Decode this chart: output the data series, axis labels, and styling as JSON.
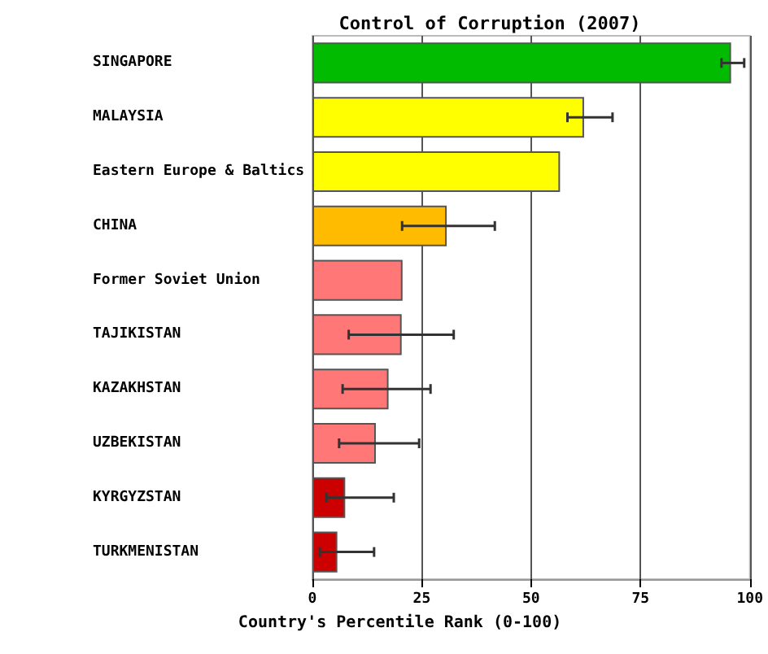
{
  "chart_data": {
    "type": "bar",
    "orientation": "horizontal",
    "title": "Control of Corruption (2007)",
    "xlabel": "Country's Percentile Rank (0-100)",
    "categories": [
      "SINGAPORE",
      "MALAYSIA",
      "Eastern Europe & Baltics",
      "CHINA",
      "Former Soviet Union",
      "TAJIKISTAN",
      "KAZAKHSTAN",
      "UZBEKISTAN",
      "KYRGYZSTAN",
      "TURKMENISTAN"
    ],
    "values": [
      95.7,
      62.1,
      56.6,
      30.7,
      20.6,
      20.4,
      17.4,
      14.5,
      7.5,
      5.7
    ],
    "colors": [
      "#00bb00",
      "#ffff00",
      "#ffff00",
      "#ffbb00",
      "#ff7777",
      "#ff7777",
      "#ff7777",
      "#ff7777",
      "#cc0000",
      "#cc0000"
    ],
    "errors": [
      [
        93.5,
        98.7
      ],
      [
        58.3,
        68.6
      ],
      null,
      [
        20.5,
        41.7
      ],
      null,
      [
        8.3,
        32.3
      ],
      [
        6.9,
        27.0
      ],
      [
        6.1,
        24.4
      ],
      [
        3.2,
        18.6
      ],
      [
        1.7,
        14.1
      ]
    ],
    "xlim": [
      0,
      100
    ],
    "xticks": [
      0,
      25,
      50,
      75,
      100
    ],
    "grid": "x"
  }
}
